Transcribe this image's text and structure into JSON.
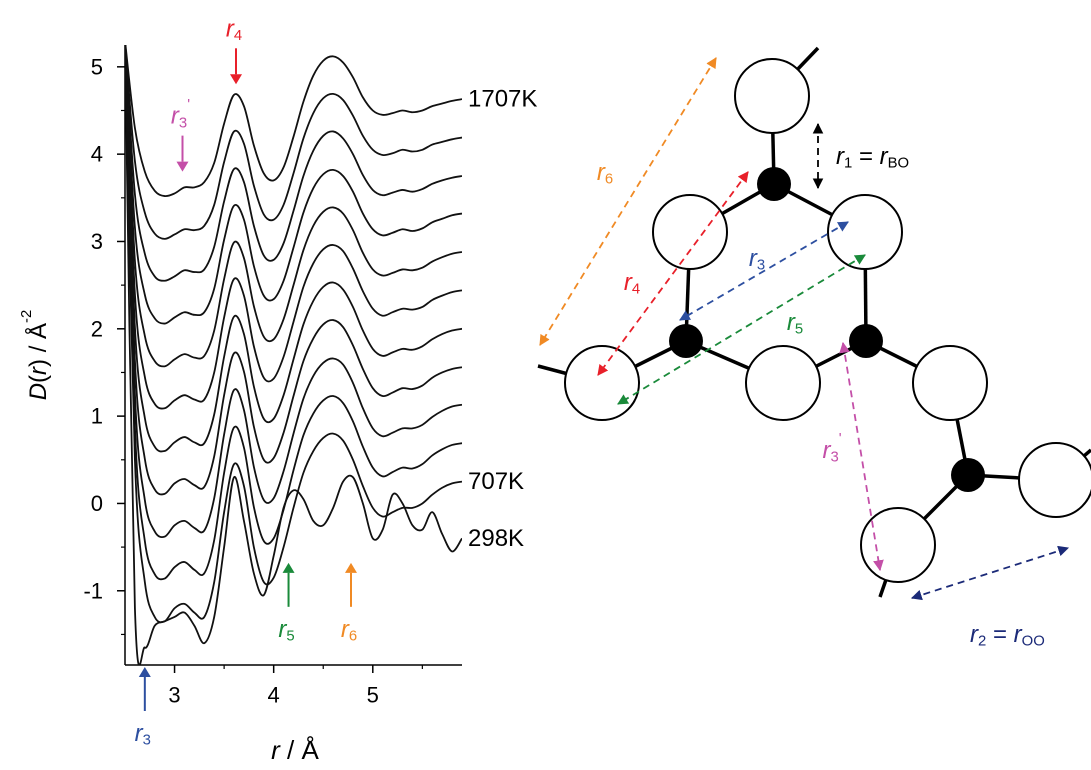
{
  "chart_data": {
    "type": "line",
    "ylabel": [
      {
        "i": "D"
      },
      {
        "n": "("
      },
      {
        "i": "r"
      },
      {
        "n": ") / Å"
      },
      {
        "sup": "-2"
      }
    ],
    "xlabel": [
      {
        "i": "r"
      },
      {
        "n": " / Å"
      }
    ],
    "xlim": [
      2.5,
      5.9
    ],
    "ylim": [
      -1.85,
      5.25
    ],
    "xticks": [
      3,
      4,
      5
    ],
    "xminorticks": [
      3.5,
      4.5,
      5.5
    ],
    "yticks": [
      -1,
      0,
      1,
      2,
      3,
      4,
      5
    ],
    "yminorticks": [
      -1.5,
      -0.5,
      0.5,
      1.5,
      2.5,
      3.5,
      4.5
    ],
    "x": [
      2.5,
      2.6,
      2.7,
      2.8,
      2.9,
      3.0,
      3.1,
      3.2,
      3.3,
      3.4,
      3.5,
      3.6,
      3.7,
      3.8,
      3.9,
      4.0,
      4.1,
      4.2,
      4.3,
      4.4,
      4.5,
      4.6,
      4.7,
      4.8,
      4.9,
      5.0,
      5.1,
      5.2,
      5.3,
      5.4,
      5.5,
      5.6,
      5.7,
      5.8,
      5.9
    ],
    "series": [
      {
        "name": "298K",
        "color": "#111111",
        "values": [
          5.3,
          -1.2,
          -1.65,
          -1.4,
          -1.35,
          -1.3,
          -1.25,
          -1.4,
          -1.6,
          -1.3,
          -0.5,
          0.3,
          -0.2,
          -0.8,
          -1.05,
          -0.6,
          -0.05,
          0.15,
          0.05,
          -0.2,
          -0.25,
          -0.05,
          0.25,
          0.3,
          0.0,
          -0.4,
          -0.3,
          0.1,
          0.0,
          -0.25,
          -0.3,
          -0.1,
          -0.35,
          -0.55,
          -0.4
        ]
      },
      {
        "name": "707K",
        "color": "#111111",
        "values": [
          5.3,
          0.5,
          -0.9,
          -1.3,
          -1.35,
          -1.2,
          -1.15,
          -1.25,
          -1.3,
          -0.9,
          -0.1,
          0.45,
          0.2,
          -0.5,
          -0.9,
          -0.85,
          -0.5,
          -0.05,
          0.35,
          0.6,
          0.75,
          0.8,
          0.72,
          0.5,
          0.2,
          -0.05,
          -0.15,
          -0.1,
          -0.05,
          -0.05,
          0,
          0.1,
          0.18,
          0.23,
          0.25
        ]
      },
      {
        "color": "#111111",
        "values": [
          5.3,
          0.88,
          -0.43,
          -0.81,
          -0.86,
          -0.73,
          -0.67,
          -0.76,
          -0.8,
          -0.42,
          0.35,
          0.87,
          0.64,
          -0.04,
          -0.43,
          -0.4,
          -0.07,
          0.38,
          0.78,
          1.03,
          1.18,
          1.23,
          1.15,
          0.94,
          0.65,
          0.41,
          0.31,
          0.36,
          0.41,
          0.4,
          0.45,
          0.55,
          0.62,
          0.67,
          0.69
        ]
      },
      {
        "color": "#111111",
        "values": [
          5.3,
          1.26,
          0.04,
          -0.32,
          -0.38,
          -0.25,
          -0.2,
          -0.28,
          -0.31,
          0.06,
          0.79,
          1.3,
          1.07,
          0.42,
          0.04,
          0.06,
          0.37,
          0.8,
          1.2,
          1.46,
          1.61,
          1.66,
          1.59,
          1.38,
          1.09,
          0.86,
          0.77,
          0.81,
          0.86,
          0.86,
          0.9,
          0.99,
          1.06,
          1.11,
          1.13
        ]
      },
      {
        "color": "#111111",
        "values": [
          5.3,
          1.64,
          0.51,
          0.16,
          0.11,
          0.23,
          0.28,
          0.21,
          0.19,
          0.54,
          1.24,
          1.72,
          1.51,
          0.88,
          0.5,
          0.52,
          0.81,
          1.23,
          1.63,
          1.89,
          2.05,
          2.1,
          2.02,
          1.81,
          1.54,
          1.32,
          1.23,
          1.27,
          1.32,
          1.31,
          1.35,
          1.44,
          1.5,
          1.54,
          1.56
        ]
      },
      {
        "color": "#111111",
        "values": [
          5.3,
          2.02,
          0.98,
          0.65,
          0.6,
          0.7,
          0.76,
          0.7,
          0.69,
          1.02,
          1.68,
          2.14,
          1.94,
          1.34,
          0.97,
          0.97,
          1.24,
          1.65,
          2.05,
          2.32,
          2.48,
          2.53,
          2.45,
          2.25,
          1.98,
          1.77,
          1.69,
          1.73,
          1.77,
          1.76,
          1.8,
          1.88,
          1.94,
          1.98,
          2.0
        ]
      },
      {
        "color": "#111111",
        "values": [
          5.3,
          2.4,
          1.45,
          1.14,
          1.09,
          1.18,
          1.24,
          1.19,
          1.19,
          1.5,
          2.13,
          2.57,
          2.38,
          1.8,
          1.44,
          1.43,
          1.68,
          2.08,
          2.48,
          2.75,
          2.91,
          2.96,
          2.89,
          2.69,
          2.43,
          2.23,
          2.15,
          2.19,
          2.23,
          2.22,
          2.25,
          2.33,
          2.38,
          2.42,
          2.44
        ]
      },
      {
        "color": "#111111",
        "values": [
          5.3,
          2.78,
          1.92,
          1.63,
          1.57,
          1.65,
          1.71,
          1.67,
          1.69,
          1.98,
          2.57,
          2.99,
          2.81,
          2.26,
          1.91,
          1.88,
          2.11,
          2.5,
          2.9,
          3.18,
          3.34,
          3.39,
          3.32,
          3.13,
          2.87,
          2.68,
          2.61,
          2.64,
          2.68,
          2.67,
          2.7,
          2.77,
          2.82,
          2.86,
          2.88
        ]
      },
      {
        "color": "#111111",
        "values": [
          5.3,
          3.16,
          2.39,
          2.12,
          2.06,
          2.13,
          2.19,
          2.16,
          2.19,
          2.46,
          3.02,
          3.41,
          3.25,
          2.72,
          2.38,
          2.34,
          2.55,
          2.93,
          3.33,
          3.61,
          3.77,
          3.82,
          3.75,
          3.57,
          3.32,
          3.14,
          3.07,
          3.1,
          3.14,
          3.12,
          3.15,
          3.22,
          3.26,
          3.3,
          3.32
        ]
      },
      {
        "color": "#111111",
        "values": [
          5.3,
          3.54,
          2.86,
          2.6,
          2.55,
          2.6,
          2.67,
          2.65,
          2.68,
          2.94,
          3.46,
          3.83,
          3.68,
          3.18,
          2.84,
          2.79,
          2.98,
          3.35,
          3.75,
          4.04,
          4.21,
          4.26,
          4.18,
          4.0,
          3.76,
          3.59,
          3.53,
          3.56,
          3.59,
          3.57,
          3.6,
          3.66,
          3.7,
          3.73,
          3.75
        ]
      },
      {
        "color": "#111111",
        "values": [
          5.3,
          3.92,
          3.33,
          3.09,
          3.03,
          3.08,
          3.14,
          3.13,
          3.18,
          3.42,
          3.91,
          4.26,
          4.12,
          3.64,
          3.31,
          3.25,
          3.42,
          3.78,
          4.18,
          4.47,
          4.64,
          4.69,
          4.62,
          4.44,
          4.21,
          4.05,
          3.99,
          4.01,
          4.05,
          4.03,
          4.05,
          4.11,
          4.14,
          4.17,
          4.19
        ]
      },
      {
        "name": "1707K",
        "color": "#111111",
        "values": [
          5.3,
          4.3,
          3.8,
          3.58,
          3.52,
          3.55,
          3.62,
          3.62,
          3.68,
          3.9,
          4.35,
          4.68,
          4.55,
          4.1,
          3.78,
          3.7,
          3.85,
          4.2,
          4.6,
          4.9,
          5.07,
          5.12,
          5.05,
          4.88,
          4.65,
          4.5,
          4.45,
          4.47,
          4.5,
          4.48,
          4.5,
          4.55,
          4.58,
          4.61,
          4.63
        ]
      }
    ],
    "annotations": [
      {
        "label": [
          {
            "i": "r"
          },
          {
            "sub": "4"
          }
        ],
        "x": 3.62,
        "y": 4.8,
        "direction": "down",
        "color": "#e8202a"
      },
      {
        "label": [
          {
            "i": "r"
          },
          {
            "sub": "3"
          },
          {
            "sup": "'"
          }
        ],
        "x": 3.08,
        "y": 3.8,
        "direction": "down",
        "color": "#c44fa8"
      },
      {
        "label": [
          {
            "i": "r"
          },
          {
            "sub": "5"
          }
        ],
        "x": 4.15,
        "y": -0.68,
        "direction": "up",
        "color": "#1a8a3a"
      },
      {
        "label": [
          {
            "i": "r"
          },
          {
            "sub": "6"
          }
        ],
        "x": 4.78,
        "y": -0.68,
        "direction": "up",
        "color": "#f08a24"
      },
      {
        "label": [
          {
            "i": "r"
          },
          {
            "sub": "3"
          }
        ],
        "x": 2.7,
        "direction": "up",
        "color": "#2d4fa0"
      }
    ]
  },
  "diagram": {
    "labels": [
      {
        "segments": [
          {
            "i": "r"
          },
          {
            "sub": "1"
          },
          {
            "n": " = "
          },
          {
            "i": "r"
          },
          {
            "sub": "BO"
          }
        ],
        "color": "#000000"
      },
      {
        "segments": [
          {
            "i": "r"
          },
          {
            "sub": "6"
          }
        ],
        "color": "#f08a24"
      },
      {
        "segments": [
          {
            "i": "r"
          },
          {
            "sub": "4"
          }
        ],
        "color": "#e8202a"
      },
      {
        "segments": [
          {
            "i": "r"
          },
          {
            "sub": "3"
          }
        ],
        "color": "#2d4fa0"
      },
      {
        "segments": [
          {
            "i": "r"
          },
          {
            "sub": "5"
          }
        ],
        "color": "#1a8a3a"
      },
      {
        "segments": [
          {
            "i": "r"
          },
          {
            "sub": "3"
          },
          {
            "sup": "'"
          }
        ],
        "color": "#c44fa8"
      },
      {
        "segments": [
          {
            "i": "r"
          },
          {
            "sub": "2"
          },
          {
            "n": " = "
          },
          {
            "i": "r"
          },
          {
            "sub": "OO"
          }
        ],
        "color": "#1b2a78"
      }
    ]
  }
}
